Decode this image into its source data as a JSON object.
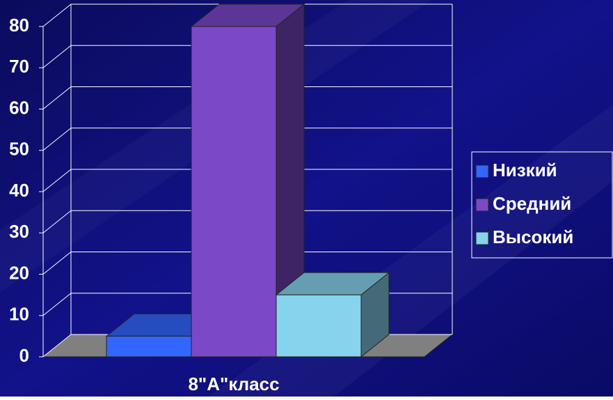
{
  "chart_data": {
    "type": "bar3d",
    "categories": [
      "8\"А\"класс"
    ],
    "series": [
      {
        "name": "Низкий",
        "color": "#3366ff",
        "values": [
          5
        ]
      },
      {
        "name": "Средний",
        "color": "#7b48c8",
        "values": [
          80
        ]
      },
      {
        "name": "Высокий",
        "color": "#87d3ee",
        "values": [
          15
        ]
      }
    ],
    "ylim": [
      0,
      80
    ],
    "yticks": [
      0,
      10,
      20,
      30,
      40,
      50,
      60,
      70,
      80
    ],
    "grid": true,
    "legend": "right"
  }
}
